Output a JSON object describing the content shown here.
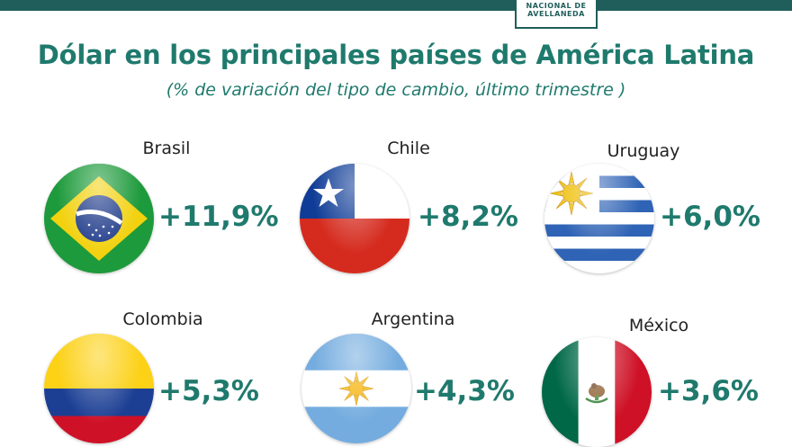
{
  "header": {
    "logo_line1": "NACIONAL DE",
    "logo_line2": "AVELLANEDA"
  },
  "title": "Dólar en los principales países de América Latina",
  "subtitle": "(% de variación del tipo de cambio, último trimestre )",
  "colors": {
    "accent": "#1f7a6d",
    "bar": "#1f5e5a"
  },
  "countries": [
    {
      "name": "Brasil",
      "change": "+11,9%",
      "flag_icon": "brazil-flag-icon"
    },
    {
      "name": "Chile",
      "change": "+8,2%",
      "flag_icon": "chile-flag-icon"
    },
    {
      "name": "Uruguay",
      "change": "+6,0%",
      "flag_icon": "uruguay-flag-icon"
    },
    {
      "name": "Colombia",
      "change": "+5,3%",
      "flag_icon": "colombia-flag-icon"
    },
    {
      "name": "Argentina",
      "change": "+4,3%",
      "flag_icon": "argentina-flag-icon"
    },
    {
      "name": "México",
      "change": "+3,6%",
      "flag_icon": "mexico-flag-icon"
    }
  ]
}
